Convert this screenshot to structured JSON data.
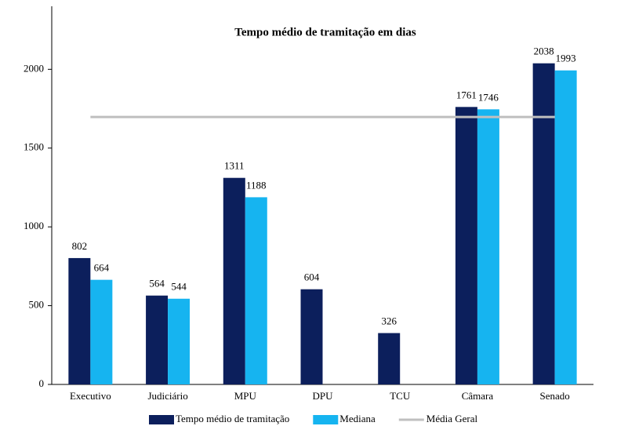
{
  "chart_data": {
    "type": "bar",
    "title": "Tempo médio de tramitação em dias",
    "categories": [
      "Executivo",
      "Judiciário",
      "MPU",
      "DPU",
      "TCU",
      "Câmara",
      "Senado"
    ],
    "series": [
      {
        "name": "Tempo médio de tramitação",
        "color": "#0c1f5c",
        "values": [
          802,
          564,
          1311,
          604,
          326,
          1761,
          2038
        ]
      },
      {
        "name": "Mediana",
        "color": "#16b4f0",
        "values": [
          664,
          544,
          1188,
          null,
          null,
          1746,
          1993
        ]
      }
    ],
    "reference_line": {
      "name": "Média Geral",
      "value": 1697,
      "color": "#bfbfbf"
    },
    "ylim": [
      0,
      2400
    ],
    "yticks": [
      0,
      500,
      1000,
      1500,
      2000
    ],
    "legend": "bottom"
  }
}
